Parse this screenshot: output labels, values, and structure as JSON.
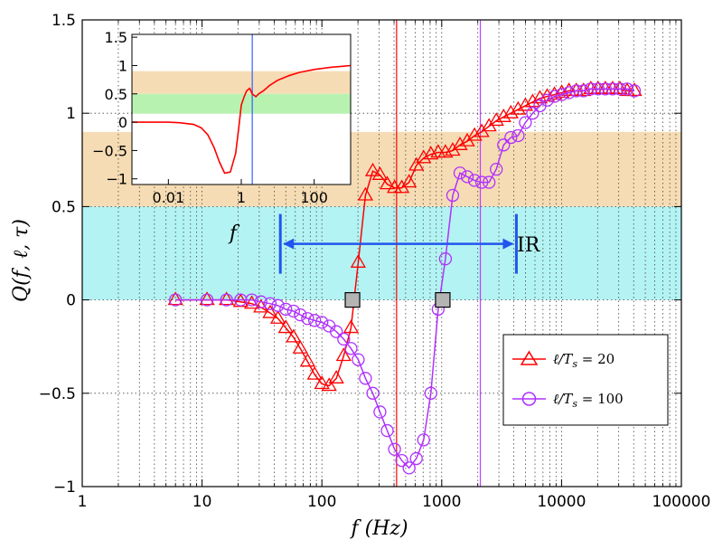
{
  "chart_data": [
    {
      "type": "line",
      "xscale": "log",
      "xlim": [
        1,
        100000
      ],
      "ylim": [
        -1,
        1.5
      ],
      "xlabel": "f (Hz)",
      "ylabel": "Q(f, ℓ, τ)",
      "x_tick_labels": [
        "1",
        "10",
        "100",
        "1000",
        "10000",
        "100000"
      ],
      "y_tick_labels": [
        "−1",
        "−0.5",
        "0",
        "0.5",
        "1",
        "1.5"
      ],
      "grid": "dotted",
      "legend_placement": "bottom-right",
      "bands": [
        {
          "from": 0,
          "to": 0.5,
          "color": "#b3f3f3"
        },
        {
          "from": 0.5,
          "to": 0.9,
          "color": "#f6dcb4"
        }
      ],
      "vlines": [
        {
          "x": 420,
          "color": "#ff0000"
        },
        {
          "x": 2100,
          "color": "#c040ff"
        }
      ],
      "range_arrow": {
        "x_from": 45,
        "x_to": 4200,
        "y": 0.3,
        "label": "IR",
        "color": "#2255ee"
      },
      "zero_markers": [
        {
          "x": 180,
          "y": 0
        },
        {
          "x": 1020,
          "y": 0
        }
      ],
      "series": [
        {
          "name": "ℓ/Ts = 20",
          "color": "#ff0000",
          "marker": "triangle",
          "x": [
            6,
            11,
            16,
            21,
            26,
            31,
            37,
            43,
            50,
            58,
            66,
            76,
            87,
            100,
            115,
            132,
            152,
            175,
            201,
            231,
            266,
            305,
            351,
            404,
            464,
            534,
            614,
            706,
            812,
            934,
            1074,
            1235,
            1420,
            1633,
            1878,
            2159,
            2483,
            2855,
            3283,
            3775,
            4341,
            4992,
            5740,
            6600,
            7590,
            8728,
            10036,
            11540,
            13270,
            15259,
            17546,
            20176,
            23200,
            26678,
            30677,
            35275,
            40563
          ],
          "y": [
            0.0,
            0.0,
            0.0,
            -0.01,
            -0.02,
            -0.04,
            -0.07,
            -0.1,
            -0.15,
            -0.2,
            -0.26,
            -0.33,
            -0.4,
            -0.45,
            -0.46,
            -0.42,
            -0.3,
            -0.15,
            0.2,
            0.56,
            0.69,
            0.67,
            0.62,
            0.6,
            0.6,
            0.63,
            0.72,
            0.76,
            0.78,
            0.79,
            0.79,
            0.8,
            0.83,
            0.85,
            0.88,
            0.9,
            0.93,
            0.96,
            0.98,
            1.0,
            1.02,
            1.04,
            1.06,
            1.08,
            1.09,
            1.1,
            1.11,
            1.12,
            1.12,
            1.12,
            1.13,
            1.13,
            1.13,
            1.13,
            1.13,
            1.12,
            1.12
          ]
        },
        {
          "name": "ℓ/Ts = 100",
          "color": "#b030ff",
          "marker": "circle",
          "x": [
            6,
            11,
            16,
            21,
            26,
            31,
            37,
            43,
            50,
            58,
            66,
            76,
            87,
            100,
            115,
            132,
            152,
            175,
            201,
            231,
            266,
            305,
            351,
            404,
            464,
            534,
            614,
            706,
            812,
            934,
            1074,
            1235,
            1420,
            1633,
            1878,
            2159,
            2483,
            2855,
            3283,
            3775,
            4341,
            4992,
            5740,
            6600,
            7590,
            8728,
            10036,
            11540,
            13270,
            15259,
            17546,
            20176,
            23200,
            26678,
            30677,
            35275,
            40563
          ],
          "y": [
            0.0,
            0.0,
            0.0,
            0.0,
            0.0,
            -0.01,
            -0.02,
            -0.03,
            -0.05,
            -0.06,
            -0.08,
            -0.1,
            -0.11,
            -0.12,
            -0.14,
            -0.17,
            -0.21,
            -0.26,
            -0.32,
            -0.42,
            -0.5,
            -0.6,
            -0.7,
            -0.8,
            -0.86,
            -0.9,
            -0.85,
            -0.75,
            -0.5,
            -0.05,
            0.22,
            0.56,
            0.68,
            0.66,
            0.64,
            0.63,
            0.63,
            0.7,
            0.83,
            0.87,
            0.88,
            0.95,
            1.0,
            1.04,
            1.07,
            1.09,
            1.1,
            1.11,
            1.12,
            1.12,
            1.13,
            1.13,
            1.13,
            1.13,
            1.13,
            1.13,
            1.12
          ]
        }
      ]
    },
    {
      "type": "line",
      "xscale": "log",
      "xlim": [
        0.001,
        1000
      ],
      "ylim": [
        -1.1,
        1.55
      ],
      "xlabel": "f",
      "x_tick_labels": [
        "0.01",
        "1",
        "100"
      ],
      "y_tick_labels": [
        "1.5",
        "1",
        "0.5",
        "0",
        "−0.5",
        "−1"
      ],
      "bands": [
        {
          "from": 0.5,
          "to": 0.9,
          "color": "#f6dcb4"
        },
        {
          "from": 0.15,
          "to": 0.5,
          "color": "#b8f2b0"
        }
      ],
      "vlines": [
        {
          "x": 2,
          "color": "#3060ff"
        }
      ],
      "series": [
        {
          "color": "#ff0000",
          "x": [
            0.001,
            0.003,
            0.01,
            0.02,
            0.05,
            0.08,
            0.12,
            0.18,
            0.25,
            0.35,
            0.5,
            0.7,
            0.85,
            1.0,
            1.2,
            1.4,
            1.7,
            2.0,
            2.5,
            3.0,
            4,
            6,
            10,
            20,
            40,
            100,
            300,
            1000
          ],
          "y": [
            0.0,
            0.0,
            0.0,
            -0.01,
            -0.04,
            -0.1,
            -0.22,
            -0.45,
            -0.7,
            -0.9,
            -0.88,
            -0.55,
            -0.1,
            0.3,
            0.45,
            0.55,
            0.6,
            0.5,
            0.45,
            0.5,
            0.55,
            0.65,
            0.74,
            0.82,
            0.88,
            0.93,
            0.97,
            1.0
          ]
        }
      ]
    }
  ],
  "legend": {
    "entries": [
      {
        "prefix": "ℓ/T",
        "sub": "s",
        "suffix": " = 20"
      },
      {
        "prefix": "ℓ/T",
        "sub": "s",
        "suffix": " = 100"
      }
    ]
  },
  "texts": {
    "ylabel_main": "Q(f, ℓ, τ)",
    "xlabel_main": "f  (Hz)",
    "inset_xlabel": "f",
    "ir_label": "IR"
  }
}
